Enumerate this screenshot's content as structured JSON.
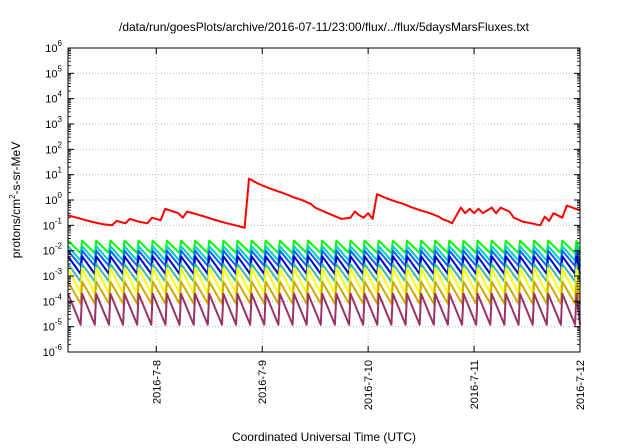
{
  "chart_data": {
    "type": "line",
    "title": "/data/run/goesPlots/archive/2016-07-11/23:00/flux/../flux/5daysMarsFluxes.txt",
    "xlabel": "Coordinated Universal Time (UTC)",
    "ylabel": {
      "base": "protons/cm",
      "sup": "2",
      "rest": "-s-sr-MeV"
    },
    "x_axis": {
      "type": "date",
      "range": [
        "2016-07-07 04:00",
        "2016-07-12 00:00"
      ],
      "ticks": [
        "2016-7-8",
        "2016-7-9",
        "2016-7-10",
        "2016-7-11",
        "2016-7-12"
      ]
    },
    "y_axis": {
      "scale": "log",
      "range": [
        1e-06,
        1000000.0
      ],
      "ticks": [
        {
          "base": "10",
          "exp": "-6"
        },
        {
          "base": "10",
          "exp": "-5"
        },
        {
          "base": "10",
          "exp": "-4"
        },
        {
          "base": "10",
          "exp": "-3"
        },
        {
          "base": "10",
          "exp": "-2"
        },
        {
          "base": "10",
          "exp": "-1"
        },
        {
          "base": "10",
          "exp": "0"
        },
        {
          "base": "10",
          "exp": "1"
        },
        {
          "base": "10",
          "exp": "2"
        },
        {
          "base": "10",
          "exp": "3"
        },
        {
          "base": "10",
          "exp": "4"
        },
        {
          "base": "10",
          "exp": "5"
        },
        {
          "base": "10",
          "exp": "6"
        }
      ]
    },
    "grid": true,
    "legend": "none",
    "series": [
      {
        "color": "#ff0000",
        "points": [
          [
            "2016-07-07 04:00",
            0.25
          ],
          [
            "2016-07-07 06:00",
            0.2
          ],
          [
            "2016-07-07 08:00",
            0.16
          ],
          [
            "2016-07-07 10:00",
            0.13
          ],
          [
            "2016-07-07 12:00",
            0.11
          ],
          [
            "2016-07-07 14:00",
            0.1
          ],
          [
            "2016-07-07 15:00",
            0.15
          ],
          [
            "2016-07-07 17:00",
            0.12
          ],
          [
            "2016-07-07 18:00",
            0.18
          ],
          [
            "2016-07-07 20:00",
            0.14
          ],
          [
            "2016-07-07 22:00",
            0.12
          ],
          [
            "2016-07-07 23:00",
            0.2
          ],
          [
            "2016-07-08 01:00",
            0.16
          ],
          [
            "2016-07-08 02:00",
            0.45
          ],
          [
            "2016-07-08 05:00",
            0.3
          ],
          [
            "2016-07-08 06:00",
            0.2
          ],
          [
            "2016-07-08 07:00",
            0.35
          ],
          [
            "2016-07-08 10:00",
            0.25
          ],
          [
            "2016-07-08 13:00",
            0.17
          ],
          [
            "2016-07-08 16:00",
            0.12
          ],
          [
            "2016-07-08 18:00",
            0.1
          ],
          [
            "2016-07-08 20:00",
            0.08
          ],
          [
            "2016-07-08 21:00",
            7.0
          ],
          [
            "2016-07-08 23:00",
            4.5
          ],
          [
            "2016-07-09 01:00",
            3.2
          ],
          [
            "2016-07-09 03:00",
            2.4
          ],
          [
            "2016-07-09 05:00",
            1.8
          ],
          [
            "2016-07-09 07:00",
            1.3
          ],
          [
            "2016-07-09 09:00",
            1.0
          ],
          [
            "2016-07-09 11:00",
            0.7
          ],
          [
            "2016-07-09 12:00",
            0.5
          ],
          [
            "2016-07-09 14:00",
            0.35
          ],
          [
            "2016-07-09 16:00",
            0.25
          ],
          [
            "2016-07-09 18:00",
            0.18
          ],
          [
            "2016-07-09 20:00",
            0.2
          ],
          [
            "2016-07-09 21:00",
            0.35
          ],
          [
            "2016-07-09 22:00",
            0.25
          ],
          [
            "2016-07-09 23:00",
            0.2
          ],
          [
            "2016-07-10 00:00",
            0.3
          ],
          [
            "2016-07-10 01:00",
            0.18
          ],
          [
            "2016-07-10 02:00",
            1.7
          ],
          [
            "2016-07-10 04:00",
            1.2
          ],
          [
            "2016-07-10 06:00",
            0.9
          ],
          [
            "2016-07-10 08:00",
            0.7
          ],
          [
            "2016-07-10 10:00",
            0.5
          ],
          [
            "2016-07-10 12:00",
            0.38
          ],
          [
            "2016-07-10 14:00",
            0.3
          ],
          [
            "2016-07-10 16:00",
            0.22
          ],
          [
            "2016-07-10 17:00",
            0.17
          ],
          [
            "2016-07-10 18:00",
            0.15
          ],
          [
            "2016-07-10 19:00",
            0.12
          ],
          [
            "2016-07-10 21:00",
            0.5
          ],
          [
            "2016-07-10 22:00",
            0.3
          ],
          [
            "2016-07-10 23:00",
            0.45
          ],
          [
            "2016-07-11 00:00",
            0.3
          ],
          [
            "2016-07-11 01:00",
            0.45
          ],
          [
            "2016-07-11 02:00",
            0.3
          ],
          [
            "2016-07-11 04:00",
            0.5
          ],
          [
            "2016-07-11 05:00",
            0.3
          ],
          [
            "2016-07-11 06:00",
            0.5
          ],
          [
            "2016-07-11 08:00",
            0.35
          ],
          [
            "2016-07-11 09:00",
            0.2
          ],
          [
            "2016-07-11 11:00",
            0.14
          ],
          [
            "2016-07-11 13:00",
            0.12
          ],
          [
            "2016-07-11 15:00",
            0.1
          ],
          [
            "2016-07-11 16:00",
            0.22
          ],
          [
            "2016-07-11 17:00",
            0.15
          ],
          [
            "2016-07-11 18:00",
            0.3
          ],
          [
            "2016-07-11 20:00",
            0.2
          ],
          [
            "2016-07-11 21:00",
            0.6
          ],
          [
            "2016-07-11 23:00",
            0.45
          ],
          [
            "2016-07-12 00:00",
            0.4
          ]
        ]
      },
      {
        "color": "#00ff00",
        "pattern": {
          "period_hours": 3.2,
          "peak": 0.025,
          "trough": 0.008
        }
      },
      {
        "color": "#00cccc",
        "pattern": {
          "period_hours": 3.2,
          "peak": 0.015,
          "trough": 0.004
        }
      },
      {
        "color": "#0066ff",
        "pattern": {
          "period_hours": 3.2,
          "peak": 0.01,
          "trough": 0.0025
        }
      },
      {
        "color": "#0000cc",
        "pattern": {
          "period_hours": 3.2,
          "peak": 0.006,
          "trough": 0.0012
        }
      },
      {
        "color": "#33bbaa",
        "pattern": {
          "period_hours": 3.2,
          "peak": 0.003,
          "trough": 0.0006
        }
      },
      {
        "color": "#ffff00",
        "pattern": {
          "period_hours": 3.2,
          "peak": 0.002,
          "trough": 0.0002
        }
      },
      {
        "color": "#ccaa00",
        "pattern": {
          "period_hours": 3.2,
          "peak": 0.0006,
          "trough": 8e-05
        }
      },
      {
        "color": "#993366",
        "pattern": {
          "period_hours": 3.2,
          "peak": 0.0002,
          "trough": 1.2e-05
        }
      }
    ]
  }
}
